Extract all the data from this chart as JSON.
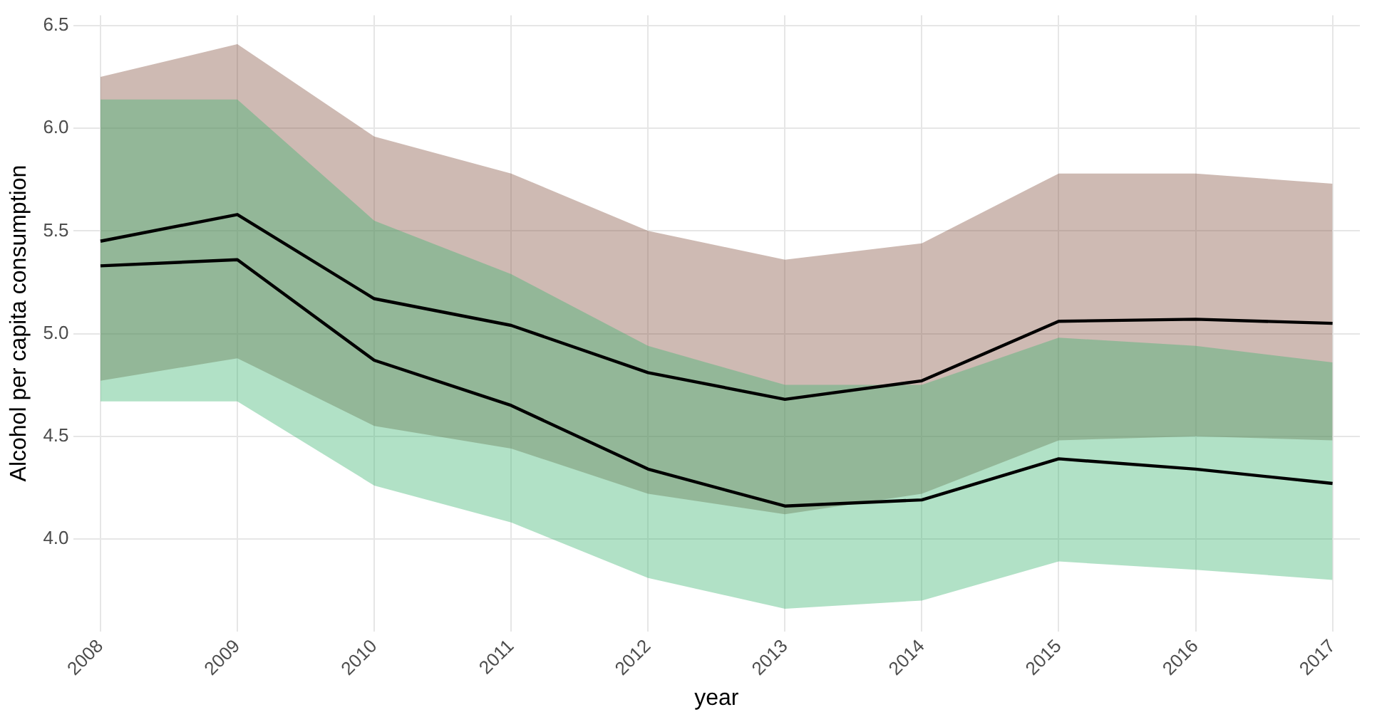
{
  "chart_data": {
    "type": "line",
    "xlabel": "year",
    "ylabel": "Alcohol per capita consumption",
    "x": [
      2008,
      2009,
      2010,
      2011,
      2012,
      2013,
      2014,
      2015,
      2016,
      2017
    ],
    "series": [
      {
        "color": "#000000",
        "values": [
          5.45,
          5.58,
          5.17,
          5.04,
          4.81,
          4.68,
          4.77,
          5.06,
          5.07,
          5.05
        ],
        "lower": [
          4.77,
          4.88,
          4.55,
          4.44,
          4.22,
          4.12,
          4.22,
          4.48,
          4.5,
          4.48
        ],
        "upper": [
          6.25,
          6.41,
          5.96,
          5.78,
          5.5,
          5.36,
          5.44,
          5.78,
          5.78,
          5.73
        ]
      },
      {
        "color": "#000000",
        "values": [
          5.33,
          5.36,
          4.87,
          4.65,
          4.34,
          4.16,
          4.19,
          4.39,
          4.34,
          4.27
        ],
        "lower": [
          4.67,
          4.67,
          4.26,
          4.08,
          3.81,
          3.66,
          3.7,
          3.89,
          3.85,
          3.8
        ],
        "upper": [
          6.14,
          6.14,
          5.55,
          5.29,
          4.94,
          4.75,
          4.75,
          4.98,
          4.94,
          4.86
        ]
      }
    ],
    "xlim": [
      2007.8,
      2017.2
    ],
    "xticks": [
      2008,
      2009,
      2010,
      2011,
      2012,
      2013,
      2014,
      2015,
      2016,
      2017
    ],
    "ylim": [
      3.55,
      6.55
    ],
    "yticks": [
      {
        "value": 4,
        "label": "4.0"
      },
      {
        "value": 4.5,
        "label": "4.5"
      },
      {
        "value": 5,
        "label": "5.0"
      },
      {
        "value": 5.5,
        "label": "5.5"
      },
      {
        "value": 6,
        "label": "6.0"
      },
      {
        "value": 6.5,
        "label": "6.5"
      }
    ],
    "grid": true,
    "marker": "none",
    "line_style": "solid",
    "legend": false
  }
}
